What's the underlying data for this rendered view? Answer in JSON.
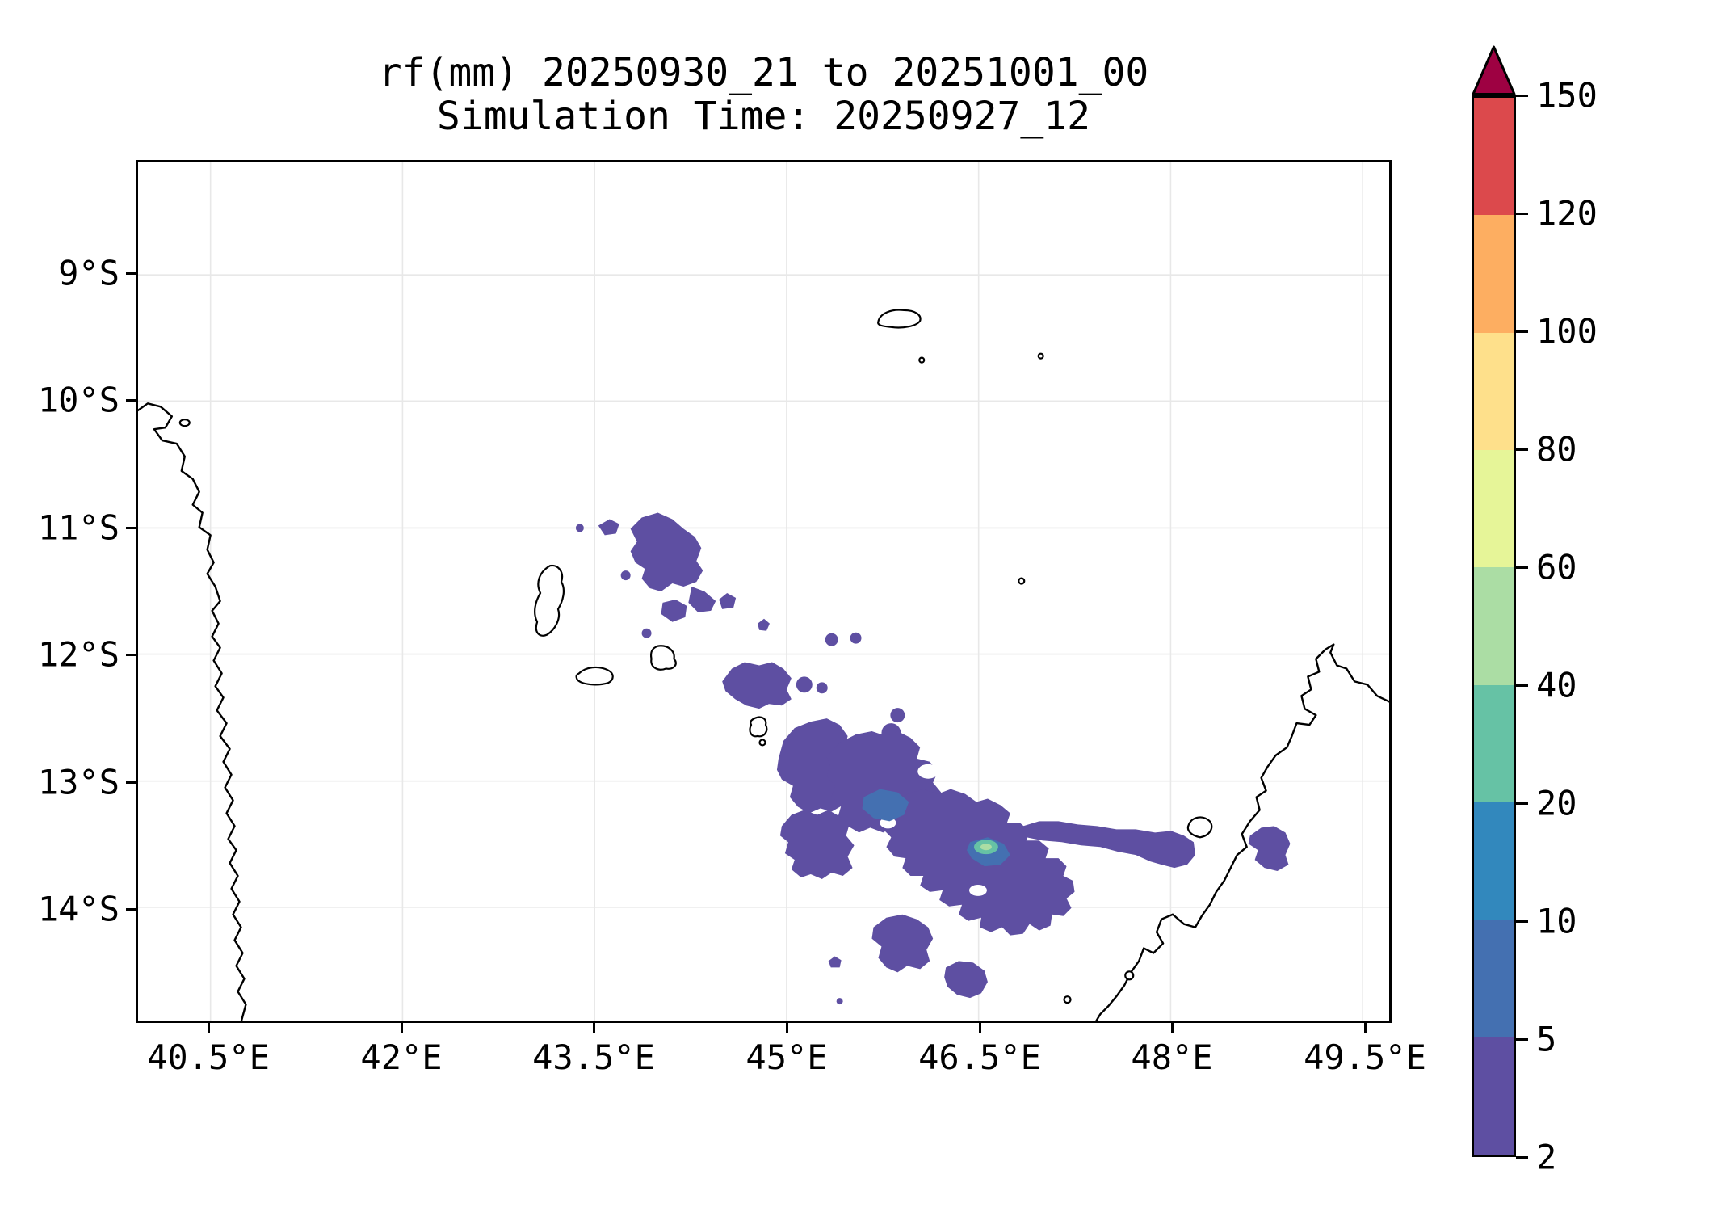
{
  "figure": {
    "title": "rf(mm) 20250930_21 to 20251001_00",
    "subtitle": "Simulation Time: 20250927_12"
  },
  "axes": {
    "x_ticks": [
      "40.5°E",
      "42°E",
      "43.5°E",
      "45°E",
      "46.5°E",
      "48°E",
      "49.5°E"
    ],
    "y_ticks": [
      "9°S",
      "10°S",
      "11°S",
      "12°S",
      "13°S",
      "14°S"
    ]
  },
  "colorbar": {
    "tick_values": [
      "2",
      "5",
      "10",
      "20",
      "40",
      "60",
      "80",
      "100",
      "120",
      "150"
    ],
    "segment_colors": [
      "#5e4fa2",
      "#4470b1",
      "#3288bd",
      "#66c2a5",
      "#abdda4",
      "#e6f598",
      "#fee08b",
      "#fdae61",
      "#dc494c"
    ],
    "extend_max_color": "#9e0142"
  },
  "palette": {
    "rain_2_5": "#5e4fa2",
    "rain_5_10": "#4470b1",
    "rain_10_20": "#3288bd",
    "rain_20_40": "#66c2a5",
    "rain_40_60": "#abdda4",
    "rain_center": "#e6f598",
    "grid_line": "#e8e8e8",
    "coastline": "#000000",
    "extend_max": "#9e0142"
  },
  "chart_data": {
    "type": "heatmap",
    "subtype": "filled_contour_precipitation_map",
    "title": "rf(mm) 20250930_21 to 20251001_00",
    "subtitle": "Simulation Time: 20250927_12",
    "variable": "rainfall accumulation (mm)",
    "accumulation_period": {
      "start": "20250930_21",
      "end": "20251001_00"
    },
    "simulation_time": "20250927_12",
    "x_axis": {
      "tick_labels": [
        "40.5°E",
        "42°E",
        "43.5°E",
        "45°E",
        "46.5°E",
        "48°E",
        "49.5°E"
      ],
      "range_deg_east": [
        39.9,
        49.7
      ]
    },
    "y_axis": {
      "tick_labels": [
        "9°S",
        "10°S",
        "11°S",
        "12°S",
        "13°S",
        "14°S"
      ],
      "range_deg_south": [
        8.1,
        14.9
      ]
    },
    "grid": true,
    "legend_position": "right-colorbar",
    "color_levels_mm": [
      2,
      5,
      10,
      20,
      40,
      60,
      80,
      100,
      120,
      150
    ],
    "palette": [
      "#5e4fa2",
      "#4470b1",
      "#3288bd",
      "#66c2a5",
      "#abdda4",
      "#e6f598",
      "#fee08b",
      "#fdae61",
      "#dc494c"
    ],
    "extend_max_color": "#9e0142",
    "geography": [
      "Mozambique coast along west edge",
      "Comoros islands (Grande Comore, Mohéli, Anjouan, Mayotte)",
      "Aldabra atoll and small islets in north",
      "Northwest Madagascar coast in southeast corner"
    ],
    "rain_regions": [
      {
        "area_deg": "44.0-44.9°E, 11.0-11.8°S",
        "value_mm": "2-5",
        "note": "scattered patches northeast of Grande Comore"
      },
      {
        "area_deg": "44.7-45.3°E, 12.0-12.5°S",
        "value_mm": "2-5",
        "note": "patch north of Mayotte"
      },
      {
        "area_deg": "45.0-47.2°E, 12.6-14.4°S",
        "value_mm": "2-10",
        "note": "main rain mass between Comoros and NW Madagascar with embedded 5-10 mm cores"
      },
      {
        "area_deg": "~46.6°E, 13.6°S",
        "value_mm": "20-40",
        "note": "small isolated maximum with pale center"
      },
      {
        "area_deg": "47.4-48.4°E, 13.3-13.9°S",
        "value_mm": "2-5",
        "note": "arm extending toward the NW Madagascar coastline"
      },
      {
        "area_deg": "46.2-47.0°E, 14.4-14.8°S",
        "value_mm": "2-5",
        "note": "detached blobs south of main mass"
      }
    ]
  }
}
